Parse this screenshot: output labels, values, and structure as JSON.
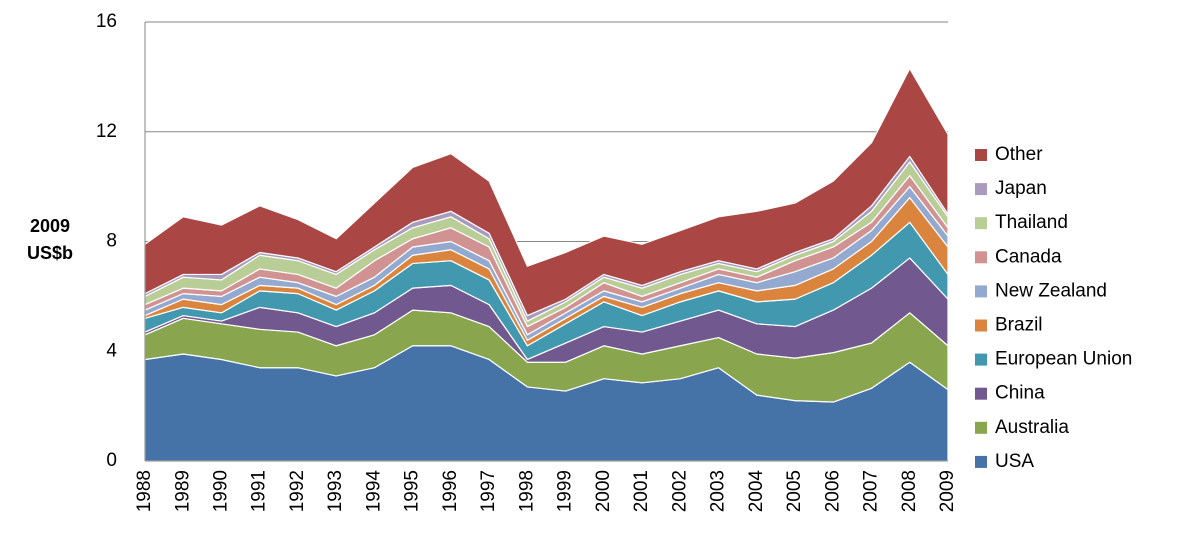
{
  "chart_data": {
    "type": "stacked-area",
    "y_label": [
      "2009",
      "US$b"
    ],
    "categories": [
      "1988",
      "1989",
      "1990",
      "1991",
      "1992",
      "1993",
      "1994",
      "1995",
      "1996",
      "1997",
      "1998",
      "1999",
      "2000",
      "2001",
      "2002",
      "2003",
      "2004",
      "2005",
      "2006",
      "2007",
      "2008",
      "2009"
    ],
    "ylim": [
      0,
      16
    ],
    "yticks": [
      0,
      4,
      8,
      12,
      16
    ],
    "grid": true,
    "legend": "right",
    "series": [
      {
        "name": "USA",
        "color": "#4572a7",
        "values": [
          3.7,
          3.9,
          3.7,
          3.4,
          3.4,
          3.1,
          3.4,
          4.2,
          4.2,
          3.7,
          2.7,
          2.55,
          3.0,
          2.85,
          3.0,
          3.4,
          2.4,
          2.2,
          2.15,
          2.65,
          3.6,
          2.6
        ]
      },
      {
        "name": "Australia",
        "color": "#89a54e",
        "values": [
          0.9,
          1.3,
          1.3,
          1.4,
          1.3,
          1.1,
          1.2,
          1.3,
          1.2,
          1.2,
          0.9,
          1.05,
          1.2,
          1.05,
          1.2,
          1.1,
          1.5,
          1.55,
          1.8,
          1.65,
          1.8,
          1.6
        ]
      },
      {
        "name": "China",
        "color": "#71588f",
        "values": [
          0.1,
          0.1,
          0.1,
          0.8,
          0.7,
          0.7,
          0.8,
          0.8,
          1.0,
          0.8,
          0.1,
          0.7,
          0.7,
          0.8,
          0.9,
          1.0,
          1.1,
          1.15,
          1.55,
          2.0,
          2.0,
          1.7
        ]
      },
      {
        "name": "European Union",
        "color": "#4198af",
        "values": [
          0.5,
          0.3,
          0.3,
          0.6,
          0.7,
          0.6,
          0.8,
          0.9,
          0.9,
          0.9,
          0.5,
          0.7,
          0.9,
          0.6,
          0.7,
          0.7,
          0.8,
          1.0,
          1.0,
          1.2,
          1.3,
          0.9
        ]
      },
      {
        "name": "Brazil",
        "color": "#db843d",
        "values": [
          0.1,
          0.3,
          0.3,
          0.2,
          0.2,
          0.2,
          0.2,
          0.3,
          0.4,
          0.4,
          0.2,
          0.2,
          0.2,
          0.3,
          0.3,
          0.3,
          0.4,
          0.5,
          0.5,
          0.5,
          0.9,
          1.0
        ]
      },
      {
        "name": "New Zealand",
        "color": "#93a9cf",
        "values": [
          0.2,
          0.2,
          0.3,
          0.3,
          0.2,
          0.3,
          0.3,
          0.3,
          0.3,
          0.3,
          0.2,
          0.2,
          0.2,
          0.2,
          0.2,
          0.3,
          0.3,
          0.5,
          0.4,
          0.4,
          0.4,
          0.4
        ]
      },
      {
        "name": "Canada",
        "color": "#d19392",
        "values": [
          0.2,
          0.2,
          0.2,
          0.3,
          0.3,
          0.3,
          0.6,
          0.3,
          0.5,
          0.5,
          0.3,
          0.2,
          0.3,
          0.2,
          0.2,
          0.2,
          0.2,
          0.4,
          0.4,
          0.3,
          0.4,
          0.3
        ]
      },
      {
        "name": "Thailand",
        "color": "#b9cd96",
        "values": [
          0.3,
          0.4,
          0.4,
          0.5,
          0.5,
          0.5,
          0.4,
          0.4,
          0.4,
          0.3,
          0.2,
          0.2,
          0.2,
          0.3,
          0.3,
          0.2,
          0.2,
          0.2,
          0.2,
          0.4,
          0.5,
          0.4
        ]
      },
      {
        "name": "Japan",
        "color": "#a99bbd",
        "values": [
          0.1,
          0.1,
          0.2,
          0.1,
          0.1,
          0.1,
          0.1,
          0.2,
          0.2,
          0.2,
          0.2,
          0.1,
          0.1,
          0.1,
          0.1,
          0.1,
          0.1,
          0.1,
          0.1,
          0.2,
          0.2,
          0.1
        ]
      },
      {
        "name": "Other",
        "color": "#aa4643",
        "values": [
          1.8,
          2.1,
          1.8,
          1.7,
          1.4,
          1.2,
          1.6,
          2.0,
          2.1,
          1.9,
          1.8,
          1.7,
          1.4,
          1.5,
          1.5,
          1.6,
          2.1,
          1.8,
          2.1,
          2.3,
          3.2,
          2.9
        ]
      }
    ]
  }
}
